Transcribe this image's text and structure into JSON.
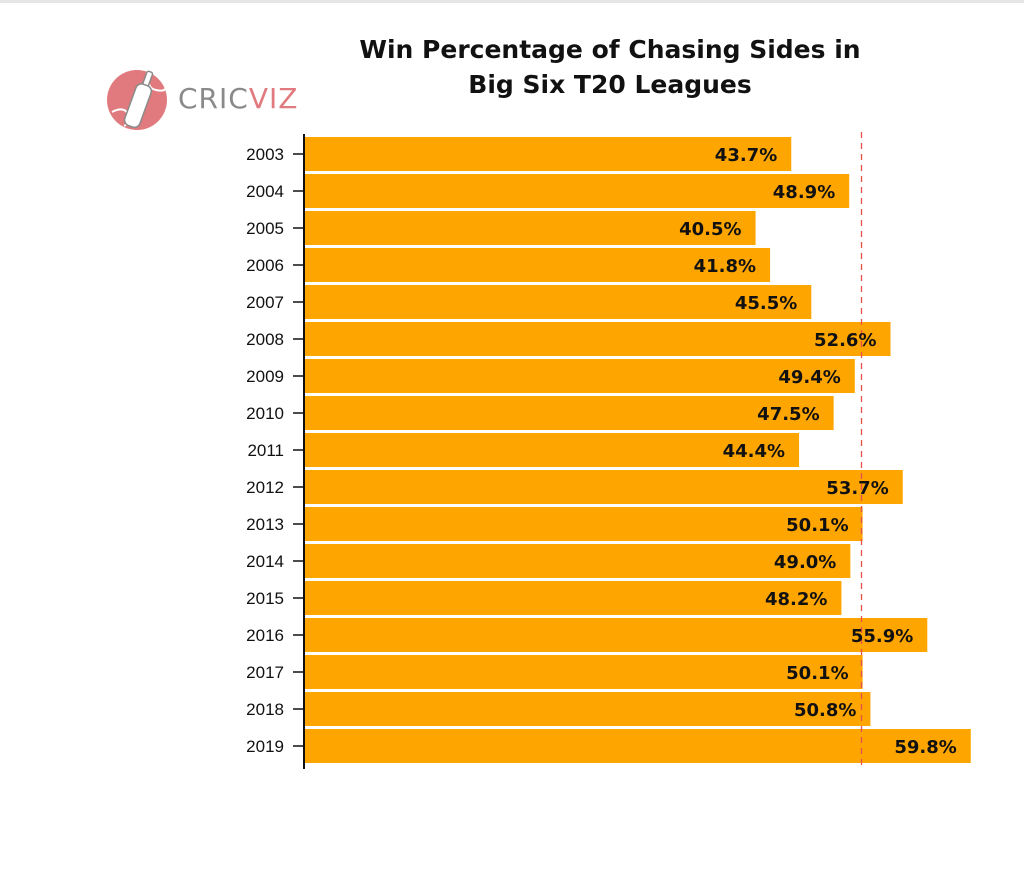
{
  "chart_data": {
    "type": "bar",
    "orientation": "horizontal",
    "title_lines": [
      "Win Percentage of Chasing Sides in",
      "Big Six T20 Leagues"
    ],
    "categories": [
      "2003",
      "2004",
      "2005",
      "2006",
      "2007",
      "2008",
      "2009",
      "2010",
      "2011",
      "2012",
      "2013",
      "2014",
      "2015",
      "2016",
      "2017",
      "2018",
      "2019"
    ],
    "values": [
      43.7,
      48.9,
      40.5,
      41.8,
      45.5,
      52.6,
      49.4,
      47.5,
      44.4,
      53.7,
      50.1,
      49.0,
      48.2,
      55.9,
      50.1,
      50.8,
      59.8
    ],
    "value_labels": [
      "43.7%",
      "48.9%",
      "40.5%",
      "41.8%",
      "45.5%",
      "52.6%",
      "49.4%",
      "47.5%",
      "44.4%",
      "53.7%",
      "50.1%",
      "49.0%",
      "48.2%",
      "55.9%",
      "50.1%",
      "50.8%",
      "59.8%"
    ],
    "reference_line": 50,
    "xlim": [
      0,
      60
    ],
    "bar_color": "#ffa500",
    "reference_line_color": "#e8504a",
    "grid": false
  },
  "logo": {
    "text_part1": "CRIC",
    "text_part2": "VIZ",
    "icon": "cricket-bat-ball-icon",
    "color_primary": "#e07a7e",
    "color_secondary": "#8a8a8a"
  }
}
